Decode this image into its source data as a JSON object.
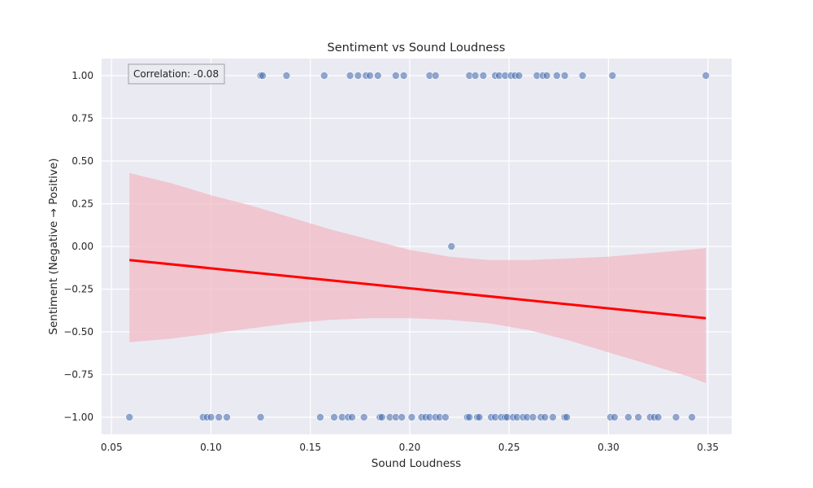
{
  "chart_data": {
    "type": "scatter",
    "title": "Sentiment vs Sound Loudness",
    "xlabel": "Sound Loudness",
    "ylabel": "Sentiment (Negative → Positive)",
    "xlim": [
      0.045,
      0.362
    ],
    "ylim": [
      -1.1,
      1.1
    ],
    "xticks": [
      0.05,
      0.1,
      0.15,
      0.2,
      0.25,
      0.3,
      0.35
    ],
    "xtick_labels": [
      "0.05",
      "0.10",
      "0.15",
      "0.20",
      "0.25",
      "0.30",
      "0.35"
    ],
    "yticks": [
      1.0,
      0.75,
      0.5,
      0.25,
      0.0,
      -0.25,
      -0.5,
      -0.75,
      -1.0
    ],
    "ytick_labels": [
      "1.00",
      "0.75",
      "0.50",
      "0.25",
      "0.00",
      "−0.25",
      "−0.50",
      "−0.75",
      "−1.00"
    ],
    "grid": true,
    "annotation": "Correlation: -0.08",
    "colors": {
      "background": "#eaeaf2",
      "grid": "#ffffff",
      "points": "#4c72b0",
      "regression_line": "#ff0000",
      "confidence_band": "#f2b2bd"
    },
    "series": [
      {
        "values_x": [
          0.125,
          0.126,
          0.138,
          0.157,
          0.17,
          0.174,
          0.178,
          0.18,
          0.184,
          0.193,
          0.197,
          0.21,
          0.213,
          0.23,
          0.233,
          0.237,
          0.243,
          0.245,
          0.248,
          0.251,
          0.253,
          0.255,
          0.264,
          0.267,
          0.269,
          0.274,
          0.278,
          0.287,
          0.302,
          0.349
        ],
        "values_y": [
          1,
          1,
          1,
          1,
          1,
          1,
          1,
          1,
          1,
          1,
          1,
          1,
          1,
          1,
          1,
          1,
          1,
          1,
          1,
          1,
          1,
          1,
          1,
          1,
          1,
          1,
          1,
          1,
          1,
          1
        ]
      },
      {
        "values_x": [
          0.221
        ],
        "values_y": [
          0
        ]
      },
      {
        "values_x": [
          0.059,
          0.096,
          0.098,
          0.1,
          0.104,
          0.108,
          0.125,
          0.155,
          0.162,
          0.166,
          0.169,
          0.171,
          0.177,
          0.185,
          0.186,
          0.19,
          0.193,
          0.196,
          0.201,
          0.206,
          0.208,
          0.21,
          0.213,
          0.215,
          0.218,
          0.229,
          0.23,
          0.234,
          0.235,
          0.241,
          0.243,
          0.246,
          0.248,
          0.249,
          0.252,
          0.254,
          0.257,
          0.259,
          0.262,
          0.266,
          0.268,
          0.272,
          0.278,
          0.279,
          0.301,
          0.303,
          0.31,
          0.315,
          0.321,
          0.323,
          0.325,
          0.334,
          0.342
        ],
        "values_y": [
          -1,
          -1,
          -1,
          -1,
          -1,
          -1,
          -1,
          -1,
          -1,
          -1,
          -1,
          -1,
          -1,
          -1,
          -1,
          -1,
          -1,
          -1,
          -1,
          -1,
          -1,
          -1,
          -1,
          -1,
          -1,
          -1,
          -1,
          -1,
          -1,
          -1,
          -1,
          -1,
          -1,
          -1,
          -1,
          -1,
          -1,
          -1,
          -1,
          -1,
          -1,
          -1,
          -1,
          -1,
          -1,
          -1,
          -1,
          -1,
          -1,
          -1,
          -1,
          -1,
          -1
        ]
      }
    ],
    "regression_line": {
      "x": [
        0.059,
        0.349
      ],
      "y": [
        -0.08,
        -0.42
      ]
    },
    "confidence_band": {
      "x": [
        0.059,
        0.08,
        0.1,
        0.12,
        0.14,
        0.16,
        0.18,
        0.2,
        0.22,
        0.24,
        0.26,
        0.28,
        0.3,
        0.32,
        0.34,
        0.349
      ],
      "upper": [
        0.43,
        0.37,
        0.3,
        0.24,
        0.17,
        0.1,
        0.04,
        -0.02,
        -0.06,
        -0.08,
        -0.08,
        -0.07,
        -0.06,
        -0.04,
        -0.02,
        -0.01
      ],
      "lower": [
        -0.56,
        -0.54,
        -0.51,
        -0.48,
        -0.45,
        -0.43,
        -0.42,
        -0.42,
        -0.43,
        -0.45,
        -0.49,
        -0.55,
        -0.62,
        -0.69,
        -0.76,
        -0.8
      ]
    }
  }
}
